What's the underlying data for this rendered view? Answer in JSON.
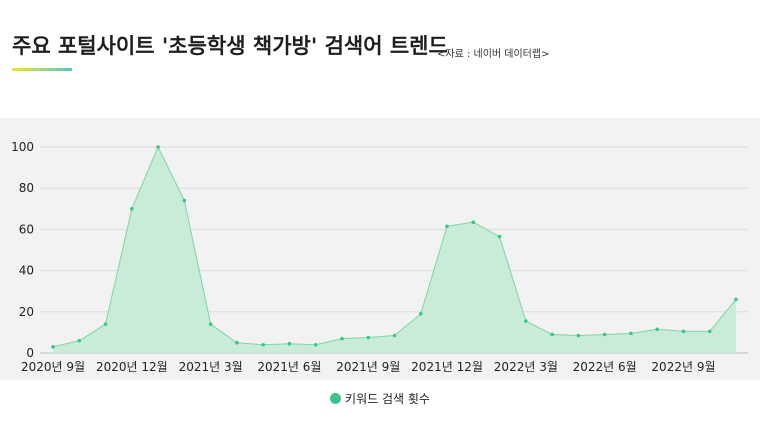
{
  "header": {
    "title": "주요 포털사이트 '초등학생 책가방' 검색어 트렌드",
    "source": "<자료 :  네이버 데이터랩>"
  },
  "colors": {
    "fill": "#c9ecd8",
    "line": "#7fd4a8",
    "marker": "#3ec48a",
    "legend": "#3ec48a"
  },
  "legend": {
    "label": "키워드 검색 횟수"
  },
  "chart_data": {
    "type": "area",
    "title": "",
    "xlabel": "",
    "ylabel": "",
    "ylim": [
      0,
      100
    ],
    "yticks": [
      0,
      20,
      40,
      60,
      80,
      100
    ],
    "grid": true,
    "legend_position": "bottom",
    "x_tick_labels": [
      "2020년 9월",
      "2020년 12월",
      "2021년 3월",
      "2021년 6월",
      "2021년 9월",
      "2021년 12월",
      "2022년 3월",
      "2022년 6월",
      "2022년 9월"
    ],
    "series": [
      {
        "name": "키워드 검색 횟수",
        "values": [
          3,
          6,
          14,
          70,
          100,
          74,
          14,
          5,
          4,
          4.5,
          4,
          7,
          7.5,
          8.5,
          19,
          61.5,
          63.5,
          56.5,
          15.5,
          9,
          8.5,
          9,
          9.5,
          11.5,
          10.5,
          10.5,
          26
        ]
      }
    ]
  }
}
